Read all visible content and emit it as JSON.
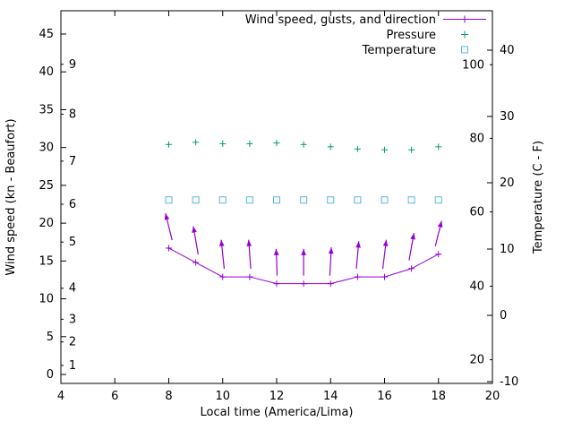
{
  "chart_data": {
    "type": "line",
    "xlabel": "Local time (America/Lima)",
    "ylabel_left": "Wind speed (kn - Beaufort)",
    "ylabel_right": "Temperature (C - F)",
    "xlim": [
      4,
      20
    ],
    "x_ticks": [
      4,
      6,
      8,
      10,
      12,
      14,
      16,
      18,
      20
    ],
    "left_axis": {
      "unit": "kn",
      "ticks": [
        0,
        5,
        10,
        15,
        20,
        25,
        30,
        35,
        40,
        45
      ],
      "range": [
        -1.2,
        48.1
      ]
    },
    "beaufort_scale": [
      {
        "label": "1",
        "kn": 1.2
      },
      {
        "label": "2",
        "kn": 4.3
      },
      {
        "label": "3",
        "kn": 7.3
      },
      {
        "label": "4",
        "kn": 11.4
      },
      {
        "label": "5",
        "kn": 17.5
      },
      {
        "label": "6",
        "kn": 22.5
      },
      {
        "label": "7",
        "kn": 28.2
      },
      {
        "label": "8",
        "kn": 34.4
      },
      {
        "label": "9",
        "kn": 41.0
      }
    ],
    "right_axis": {
      "unit": "C",
      "ticks": [
        -10,
        0,
        10,
        20,
        30,
        40
      ],
      "range": [
        -10.3,
        45.9
      ]
    },
    "fahrenheit_scale": [
      {
        "label": "20",
        "c": -6.7
      },
      {
        "label": "40",
        "c": 4.4
      },
      {
        "label": "60",
        "c": 15.6
      },
      {
        "label": "80",
        "c": 26.7
      },
      {
        "label": "100",
        "c": 37.8
      }
    ],
    "x": [
      8,
      9,
      10,
      11,
      12,
      13,
      14,
      15,
      16,
      17,
      18
    ],
    "series": {
      "wind": {
        "name": "Wind speed, gusts, and direction",
        "color": "#9400d3",
        "marker": "plus-line",
        "values_kn": [
          16.7,
          14.8,
          12.9,
          12.9,
          12.0,
          12.0,
          12.0,
          12.9,
          12.9,
          14.0,
          15.9
        ]
      },
      "gusts": {
        "name": "wind-gust-direction-arrows",
        "color": "#9400d3",
        "tip_kn": [
          21.3,
          19.6,
          17.8,
          17.8,
          16.6,
          16.6,
          16.8,
          17.6,
          17.8,
          18.7,
          20.3
        ],
        "tilt_deg": [
          -14,
          -10,
          -6,
          -4,
          -2,
          0,
          3,
          5,
          7,
          10,
          14
        ]
      },
      "pressure": {
        "name": "Pressure",
        "color": "#009e73",
        "marker": "plus",
        "values": [
          30.4,
          30.7,
          30.5,
          30.5,
          30.6,
          30.4,
          30.1,
          29.8,
          29.7,
          29.7,
          30.1
        ]
      },
      "temperature": {
        "name": "Temperature",
        "color": "#56b4e9",
        "marker": "open-square",
        "values_c": [
          17.4,
          17.4,
          17.4,
          17.4,
          17.4,
          17.4,
          17.4,
          17.4,
          17.4,
          17.4,
          17.4
        ]
      }
    },
    "legend_position": "top-right",
    "grid": false
  }
}
